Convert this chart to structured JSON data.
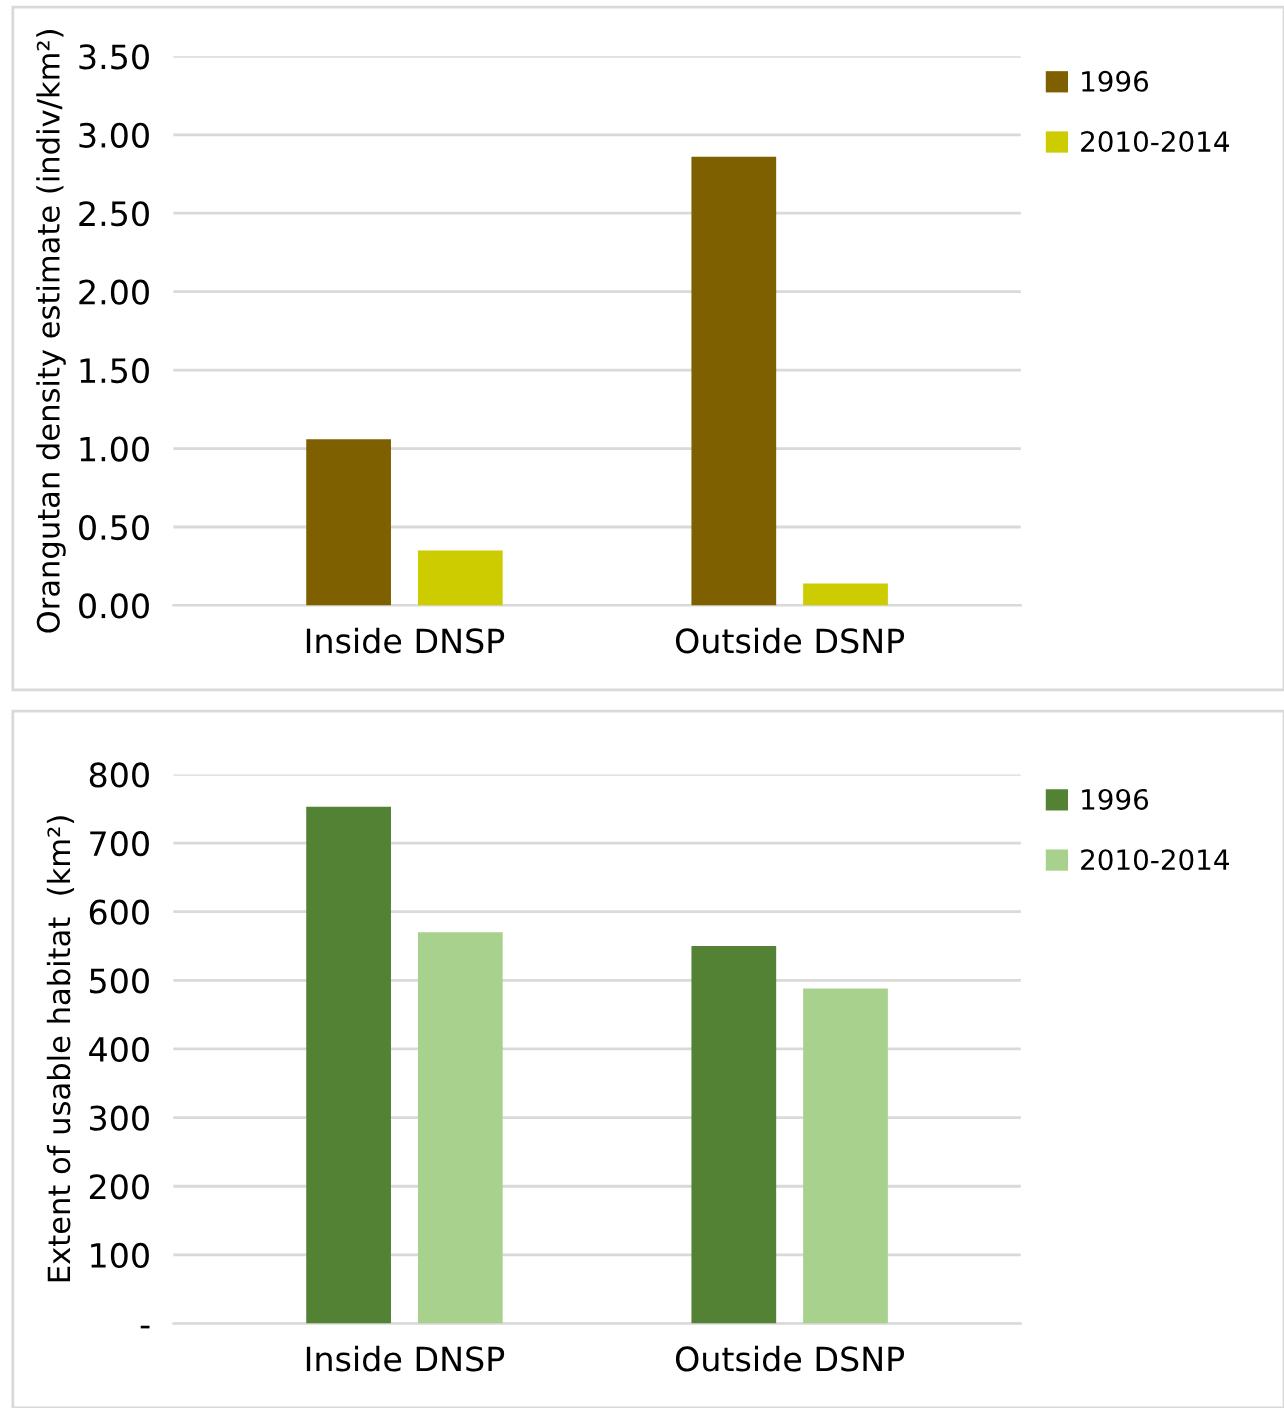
{
  "chart_data": [
    {
      "type": "bar",
      "ylabel": "Orangutan density estimate (indiv/km²)",
      "categories": [
        "Inside DNSP",
        "Outside DSNP"
      ],
      "series": [
        {
          "name": "1996",
          "color": "#7f6000",
          "values": [
            1.06,
            2.86
          ]
        },
        {
          "name": "2010-2014",
          "color": "#cccc00",
          "values": [
            0.35,
            0.14
          ]
        }
      ],
      "ylim": [
        0,
        3.5
      ],
      "yticks": [
        {
          "value": 0,
          "label": "0.00"
        },
        {
          "value": 0.5,
          "label": "0.50"
        },
        {
          "value": 1,
          "label": "1.00"
        },
        {
          "value": 1.5,
          "label": "1.50"
        },
        {
          "value": 2,
          "label": "2.00"
        },
        {
          "value": 2.5,
          "label": "2.50"
        },
        {
          "value": 3,
          "label": "3.00"
        },
        {
          "value": 3.5,
          "label": "3.50"
        }
      ],
      "grid": "y",
      "legend": "top right"
    },
    {
      "type": "bar",
      "ylabel": "Extent of usable habitat  (km²)",
      "categories": [
        "Inside DNSP",
        "Outside DSNP"
      ],
      "series": [
        {
          "name": "1996",
          "color": "#548235",
          "values": [
            753,
            550
          ]
        },
        {
          "name": "2010-2014",
          "color": "#a9d18e",
          "values": [
            570,
            488
          ]
        }
      ],
      "ylim": [
        0,
        800
      ],
      "yticks": [
        {
          "value": 0,
          "label": "-"
        },
        100,
        200,
        300,
        400,
        500,
        600,
        700,
        800
      ],
      "grid": "y",
      "legend": "top right"
    }
  ]
}
